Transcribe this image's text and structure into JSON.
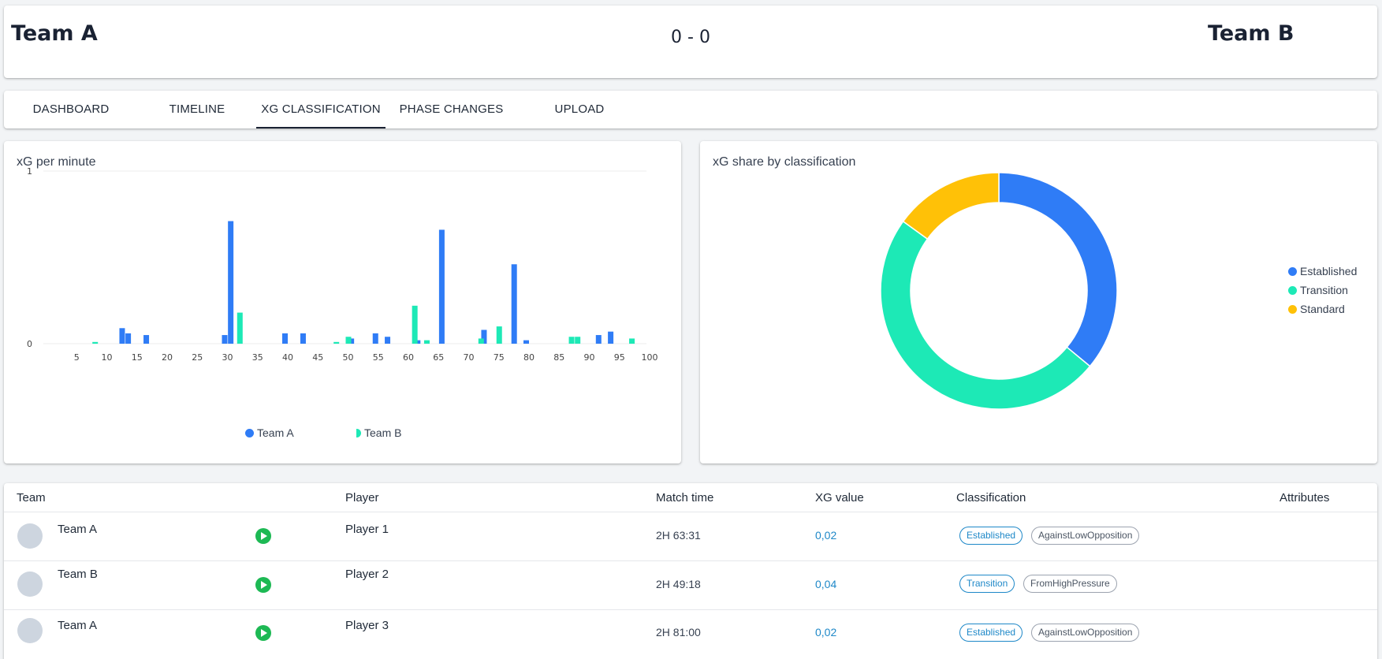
{
  "header": {
    "home_team": "Team A",
    "away_team": "Team B",
    "score": "0 - 0"
  },
  "tabs": [
    {
      "label": "DASHBOARD"
    },
    {
      "label": "TIMELINE"
    },
    {
      "label": "XG CLASSIFICATION"
    },
    {
      "label": "PHASE CHANGES"
    },
    {
      "label": "UPLOAD"
    }
  ],
  "active_tab": "XG CLASSIFICATION",
  "bar_chart": {
    "title": "xG per minute",
    "chart_data": {
      "type": "bar",
      "xlim": [
        0,
        100
      ],
      "ylim": [
        0,
        1
      ],
      "y_ticks": [
        "0",
        "1"
      ],
      "x_ticks": [
        "5",
        "10",
        "15",
        "20",
        "25",
        "30",
        "35",
        "40",
        "45",
        "50",
        "55",
        "60",
        "65",
        "70",
        "75",
        "80",
        "85",
        "90",
        "95",
        "100"
      ],
      "series": [
        {
          "name": "Team A",
          "color": "#2f7cf6",
          "points": [
            [
              13,
              0.09
            ],
            [
              14,
              0.06
            ],
            [
              17,
              0.05
            ],
            [
              30,
              0.05
            ],
            [
              31,
              0.71
            ],
            [
              40,
              0.06
            ],
            [
              43,
              0.06
            ],
            [
              51,
              0.03
            ],
            [
              55,
              0.06
            ],
            [
              57,
              0.04
            ],
            [
              62,
              0.02
            ],
            [
              66,
              0.66
            ],
            [
              73,
              0.08
            ],
            [
              78,
              0.46
            ],
            [
              80,
              0.02
            ],
            [
              92,
              0.05
            ],
            [
              94,
              0.07
            ]
          ]
        },
        {
          "name": "Team B",
          "color": "#1de9b6",
          "points": [
            [
              8,
              0.01
            ],
            [
              32,
              0.18
            ],
            [
              48,
              0.01
            ],
            [
              50,
              0.04
            ],
            [
              61,
              0.22
            ],
            [
              63,
              0.02
            ],
            [
              72,
              0.03
            ],
            [
              75,
              0.1
            ],
            [
              87,
              0.04
            ],
            [
              88,
              0.04
            ],
            [
              97,
              0.03
            ]
          ]
        }
      ]
    }
  },
  "donut_chart": {
    "title": "xG share by classification",
    "chart_data": {
      "type": "pie",
      "slices": [
        {
          "label": "Established",
          "value": 36,
          "color": "#2f7cf6"
        },
        {
          "label": "Transition",
          "value": 49,
          "color": "#1de9b6"
        },
        {
          "label": "Standard",
          "value": 15,
          "color": "#ffc107"
        }
      ]
    }
  },
  "table": {
    "headers": {
      "team": "Team",
      "player": "Player",
      "match_time": "Match time",
      "xg_value": "XG value",
      "classification": "Classification",
      "attributes": "Attributes"
    },
    "rows": [
      {
        "team": "Team A",
        "player": "Player 1",
        "match_time": "2H 63:31",
        "xg_value": "0,02",
        "classification": "Established",
        "attribute": "AgainstLowOpposition"
      },
      {
        "team": "Team B",
        "player": "Player 2",
        "match_time": "2H 49:18",
        "xg_value": "0,04",
        "classification": "Transition",
        "attribute": "FromHighPressure"
      },
      {
        "team": "Team A",
        "player": "Player 3",
        "match_time": "2H 81:00",
        "xg_value": "0,02",
        "classification": "Established",
        "attribute": "AgainstLowOpposition"
      }
    ]
  }
}
